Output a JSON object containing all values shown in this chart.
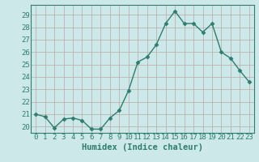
{
  "x": [
    0,
    1,
    2,
    3,
    4,
    5,
    6,
    7,
    8,
    9,
    10,
    11,
    12,
    13,
    14,
    15,
    16,
    17,
    18,
    19,
    20,
    21,
    22,
    23
  ],
  "y": [
    21.0,
    20.8,
    19.9,
    20.6,
    20.7,
    20.5,
    19.8,
    19.8,
    20.7,
    21.3,
    22.9,
    25.2,
    25.6,
    26.6,
    28.3,
    29.3,
    28.3,
    28.3,
    27.6,
    28.3,
    26.0,
    25.5,
    24.5,
    23.6
  ],
  "line_color": "#2e7d6e",
  "marker": "D",
  "marker_size": 2.5,
  "bg_color": "#cce8e8",
  "grid_color": "#b8a8a8",
  "xlabel": "Humidex (Indice chaleur)",
  "ylim": [
    19.5,
    29.8
  ],
  "xlim": [
    -0.5,
    23.5
  ],
  "yticks": [
    20,
    21,
    22,
    23,
    24,
    25,
    26,
    27,
    28,
    29
  ],
  "xticks": [
    0,
    1,
    2,
    3,
    4,
    5,
    6,
    7,
    8,
    9,
    10,
    11,
    12,
    13,
    14,
    15,
    16,
    17,
    18,
    19,
    20,
    21,
    22,
    23
  ],
  "tick_color": "#2e7d6e",
  "label_fontsize": 6.5,
  "xlabel_fontsize": 7.5,
  "linewidth": 1.0
}
